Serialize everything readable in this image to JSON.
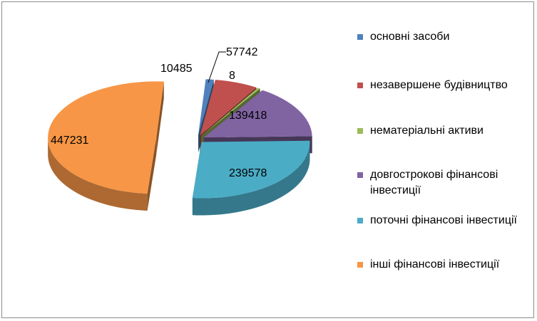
{
  "chart_data": {
    "type": "pie",
    "slices": [
      {
        "label": "основні засоби",
        "value": 10485,
        "value_label": "10485",
        "color": "#4f81bd"
      },
      {
        "label": "незавершене будівництво",
        "value": 57742,
        "value_label": "57742",
        "color": "#c0504d"
      },
      {
        "label": "нематеріальні активи",
        "value": 8,
        "value_label": "8",
        "color": "#9bbb59"
      },
      {
        "label": "довгострокові фінансові інвестиції",
        "value": 139418,
        "value_label": "139418",
        "color": "#8064a2"
      },
      {
        "label": "поточні фінансові інвестиції",
        "value": 239578,
        "value_label": "239578",
        "color": "#4bacc6"
      },
      {
        "label": "інші фінансові інвестиції",
        "value": 447231,
        "value_label": "447231",
        "color": "#f79646"
      }
    ],
    "legend_position": "right",
    "style": "3d-exploded"
  }
}
